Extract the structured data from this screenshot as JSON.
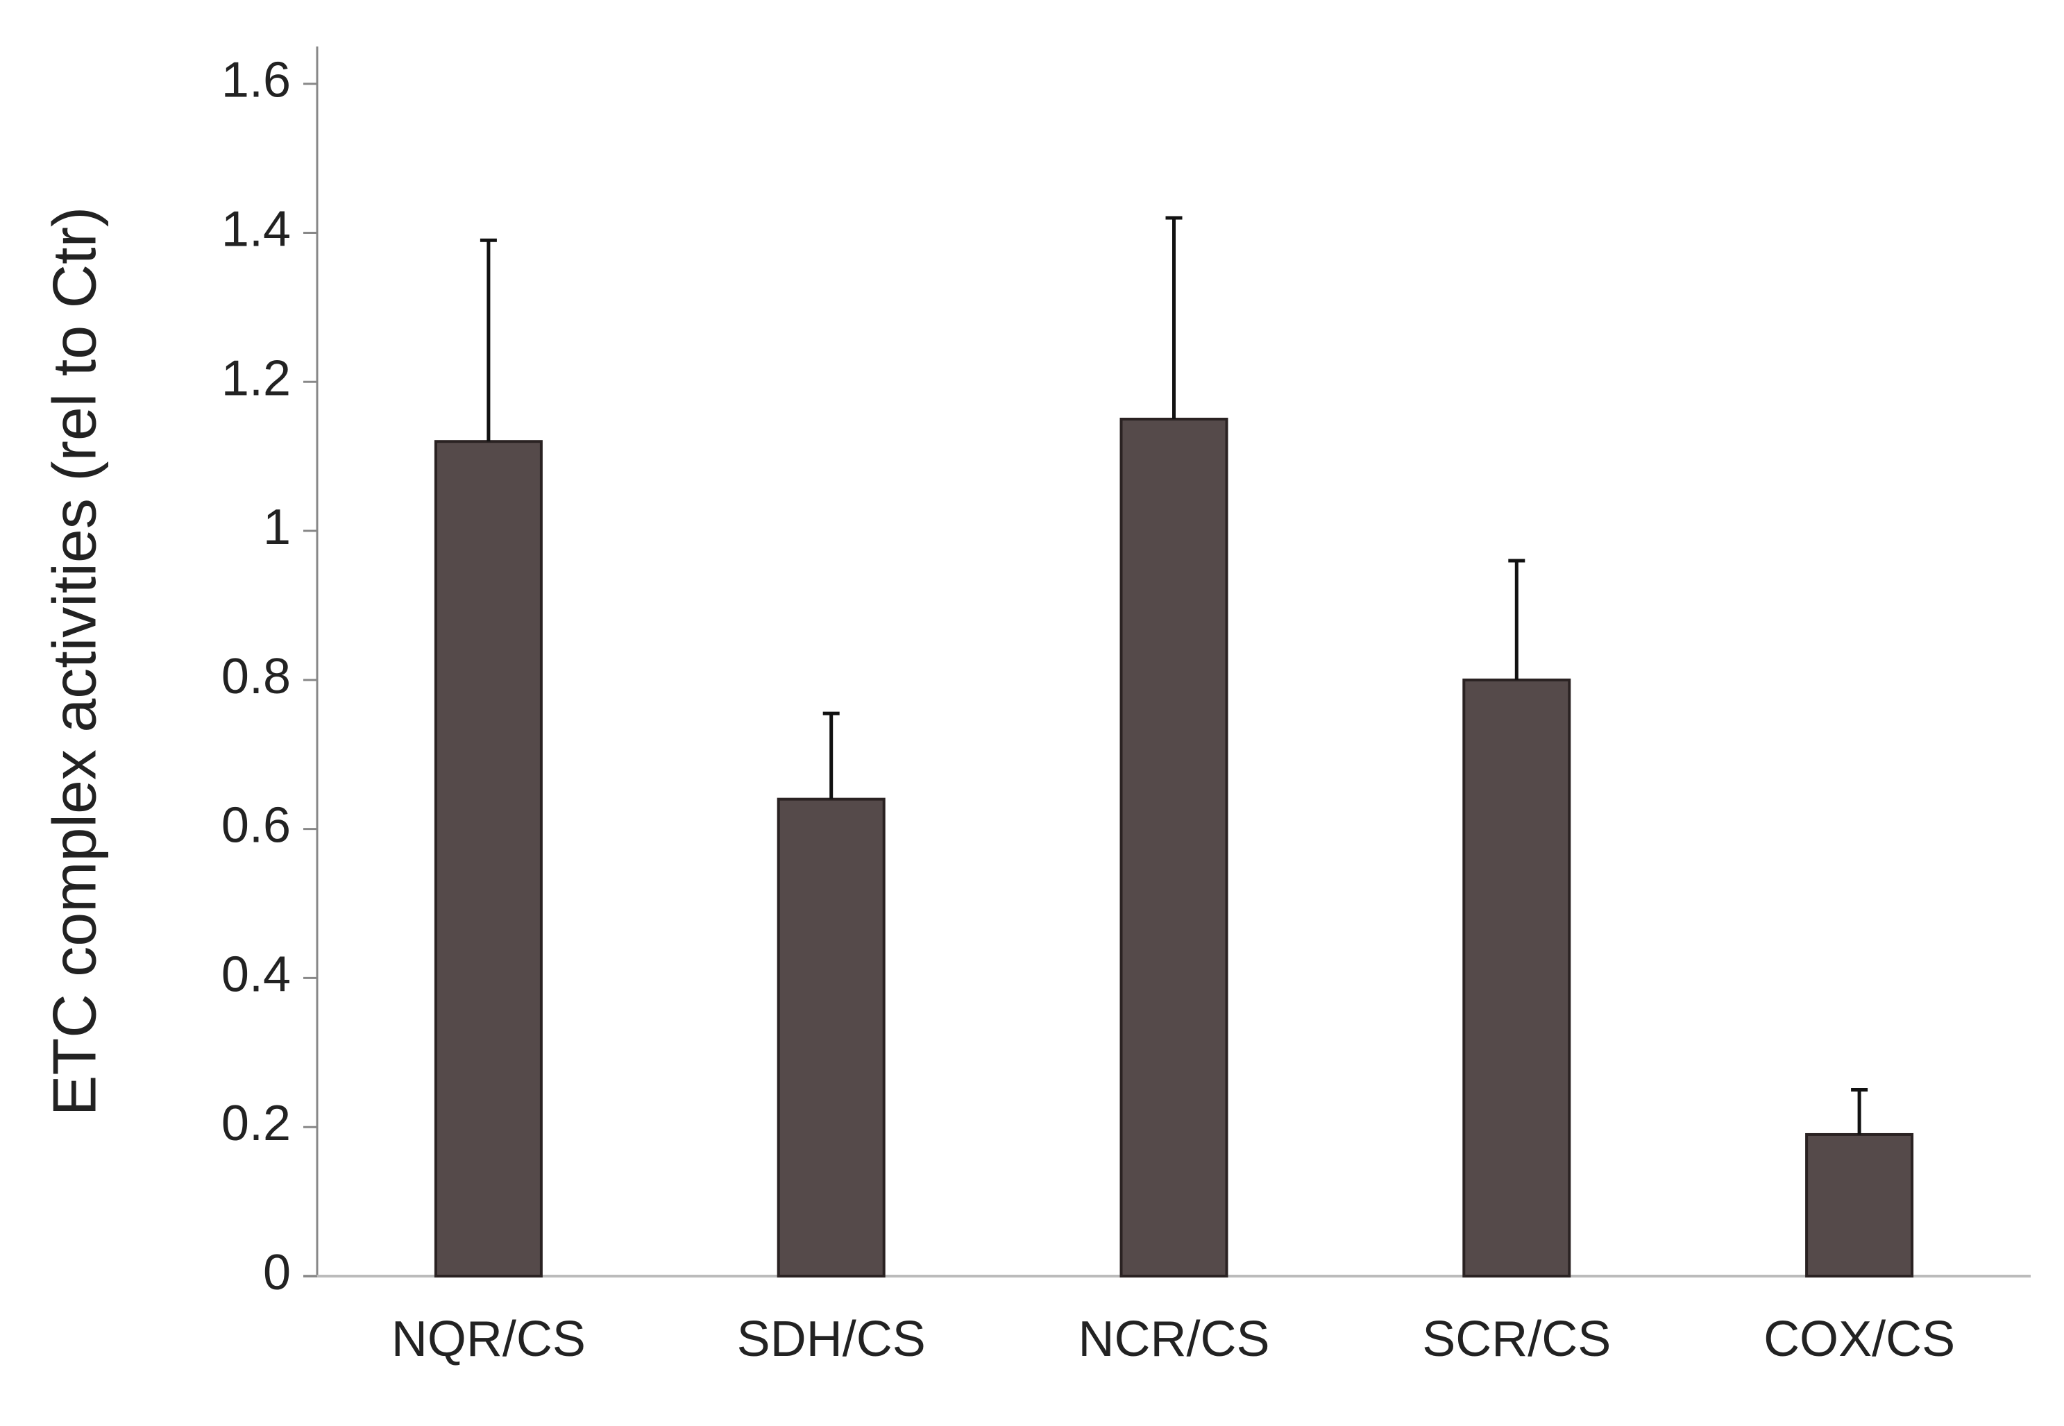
{
  "chart_data": {
    "type": "bar",
    "y_label": "ETC complex activities (rel to Ctr)",
    "categories": [
      "NQR/CS",
      "SDH/CS",
      "NCR/CS",
      "SCR/CS",
      "COX/CS"
    ],
    "values": [
      1.12,
      0.64,
      1.15,
      0.8,
      0.19
    ],
    "errors": [
      0.27,
      0.115,
      0.27,
      0.16,
      0.06
    ],
    "color": "#554a4a",
    "ylim": [
      0,
      1.65
    ],
    "yticks": [
      0,
      0.2,
      0.4,
      0.6,
      0.8,
      1,
      1.2,
      1.4,
      1.6
    ],
    "grid": false
  }
}
